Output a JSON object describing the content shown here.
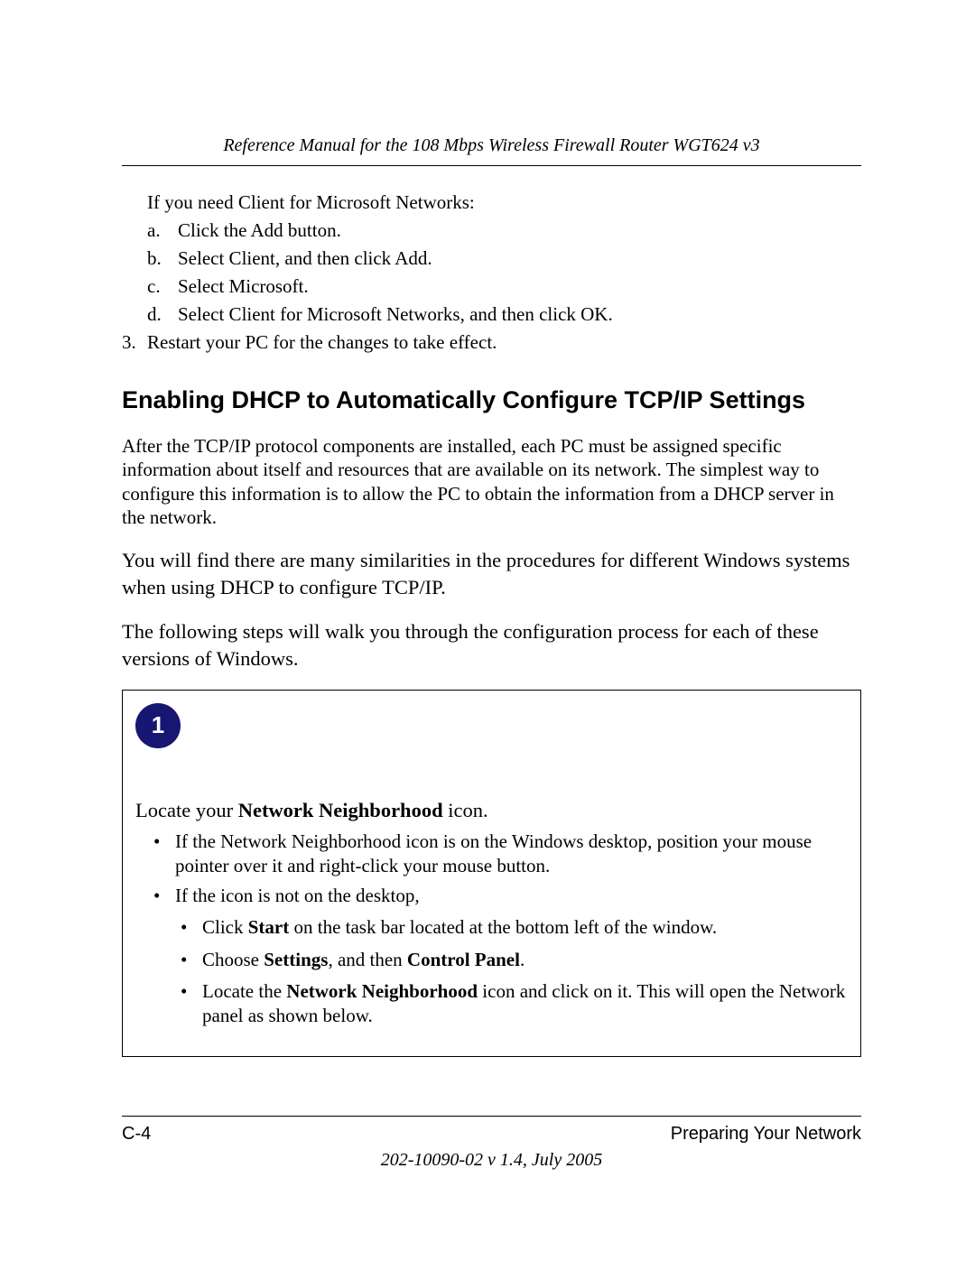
{
  "header": {
    "title": "Reference Manual for the 108 Mbps Wireless Firewall Router WGT624 v3"
  },
  "content": {
    "intro_line": "If you need Client for Microsoft Networks:",
    "alpha_items": {
      "a": {
        "marker": "a.",
        "text": "Click the Add button."
      },
      "b": {
        "marker": "b.",
        "text": "Select Client, and then click Add."
      },
      "c": {
        "marker": "c.",
        "text": "Select Microsoft."
      },
      "d": {
        "marker": "d.",
        "text": "Select Client for Microsoft Networks, and then click OK."
      }
    },
    "num_item": {
      "marker": "3.",
      "text": "Restart your PC for the changes to take effect."
    },
    "heading": "Enabling DHCP to Automatically Configure TCP/IP Settings",
    "para1": "After the TCP/IP protocol components are installed, each PC must be assigned specific information about itself and resources that are available on its network. The simplest way to configure this information is to allow the PC to obtain the information from a DHCP server in the network.",
    "para2": "You will find there are many similarities in the procedures for different Windows systems when using DHCP to configure TCP/IP.",
    "para3": "The following steps will walk you through the configuration process for each of these versions of Windows."
  },
  "step": {
    "number": "1",
    "lead_pre": "Locate your ",
    "lead_bold": "Network Neighborhood",
    "lead_post": " icon.",
    "bullets": {
      "b1": "If the Network Neighborhood icon is on the Windows desktop, position your mouse pointer over it and right-click your mouse button.",
      "b2": "If the icon is not on the desktop,",
      "s1_pre": "Click ",
      "s1_bold": "Start",
      "s1_post": " on the task bar located at the bottom left of the window.",
      "s2_pre": "Choose ",
      "s2_bold1": "Settings",
      "s2_mid": ", and then ",
      "s2_bold2": "Control Panel",
      "s2_post": ".",
      "s3_pre": "Locate the ",
      "s3_bold": "Network Neighborhood",
      "s3_post": " icon and click on it. This will open the Network panel as shown below."
    }
  },
  "footer": {
    "page_left": "C-4",
    "page_right": "Preparing Your Network",
    "docinfo": "202-10090-02 v 1.4, July 2005"
  },
  "style": {
    "badge_bg": "#171672",
    "badge_fg": "#ffffff"
  }
}
